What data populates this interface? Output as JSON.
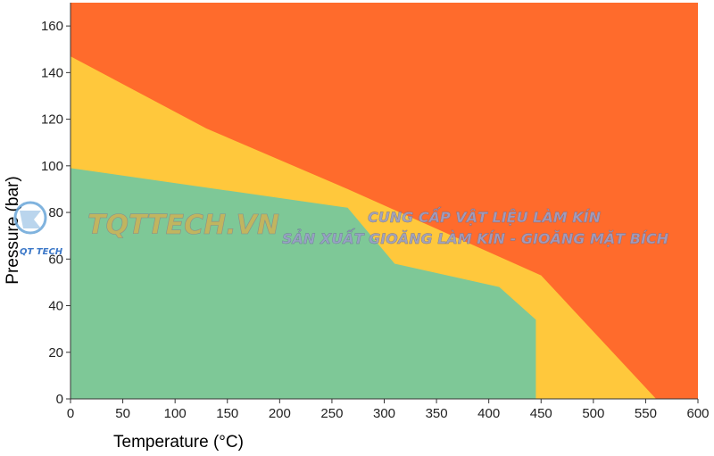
{
  "chart_data": {
    "type": "area",
    "xlabel": "Temperature (°C)",
    "ylabel": "Pressure (bar)",
    "xlim": [
      0,
      600
    ],
    "ylim": [
      0,
      170
    ],
    "x_ticks": [
      0,
      50,
      100,
      150,
      200,
      250,
      300,
      350,
      400,
      450,
      500,
      550,
      600
    ],
    "y_ticks": [
      0,
      20,
      40,
      60,
      80,
      100,
      120,
      140,
      160
    ],
    "grid": false,
    "regions": [
      {
        "color": "#ff6b2c",
        "boundary": [
          [
            0,
            170
          ],
          [
            600,
            170
          ],
          [
            600,
            0
          ],
          [
            0,
            0
          ]
        ]
      },
      {
        "color": "#ffc83c",
        "boundary": [
          [
            0,
            147
          ],
          [
            130,
            116
          ],
          [
            265,
            90
          ],
          [
            450,
            53
          ],
          [
            560,
            0
          ],
          [
            0,
            0
          ]
        ]
      },
      {
        "color": "#7ec897",
        "boundary": [
          [
            0,
            99
          ],
          [
            265,
            82
          ],
          [
            310,
            58
          ],
          [
            410,
            48
          ],
          [
            445,
            34
          ],
          [
            445,
            0
          ],
          [
            0,
            0
          ]
        ]
      }
    ]
  },
  "watermark": {
    "brand": "TQTTECH.VN",
    "logo_small": "QT TECH",
    "line1": "CUNG CẤP VẬT LIỆU LÀM KÍN",
    "line2": "SẢN XUẤT GIOĂNG LÀM KÍN - GIOĂNG MẶT BÍCH"
  }
}
